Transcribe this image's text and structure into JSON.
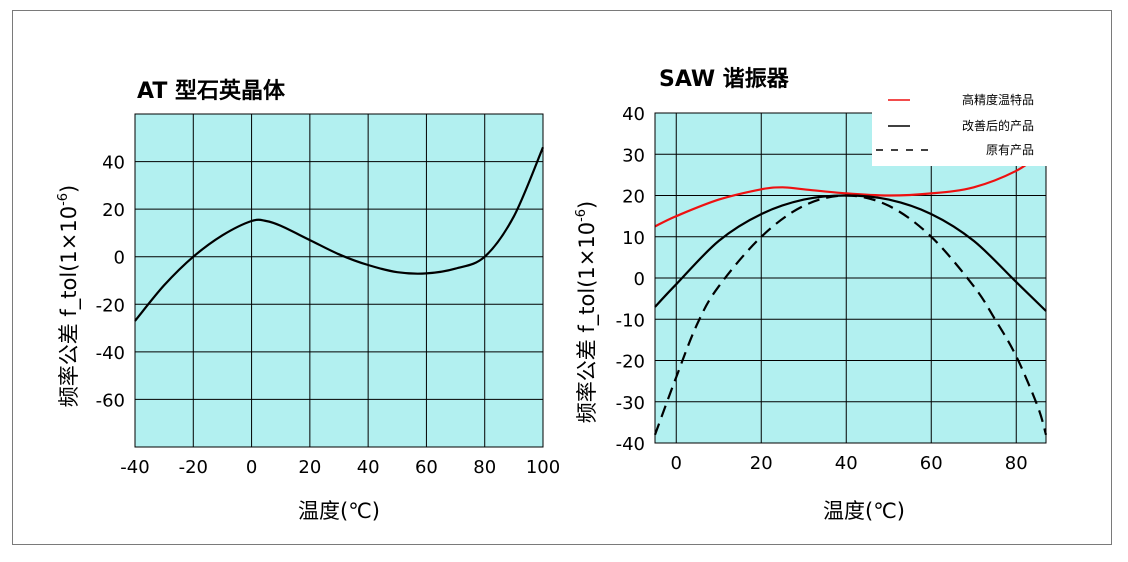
{
  "chart_data": [
    {
      "type": "line",
      "title": "AT 型石英晶体",
      "xlabel": "温度(℃)",
      "ylabel": "频率公差 f_tol(1×10",
      "ylabel_sup": "-6",
      "ylabel_close": ")",
      "xlim": [
        -40,
        100
      ],
      "ylim": [
        -80,
        60
      ],
      "xticks": [
        -40,
        -20,
        0,
        20,
        40,
        60,
        80,
        100
      ],
      "yticks": [
        -60,
        -40,
        -20,
        0,
        20,
        40
      ],
      "ytick_labels": [
        "-60",
        "-40",
        "-20",
        "0",
        "20",
        "40"
      ],
      "grid": true,
      "background": "#b2f0f0",
      "series": [
        {
          "name": "",
          "color": "#000000",
          "dash": "solid",
          "x": [
            -40,
            -30,
            -20,
            -10,
            0,
            5,
            10,
            20,
            30,
            40,
            50,
            60,
            70,
            80,
            90,
            100
          ],
          "y": [
            -27,
            -12,
            0,
            9,
            15,
            15,
            13,
            7,
            1,
            -3.5,
            -6.5,
            -7,
            -5,
            0,
            17,
            46
          ]
        }
      ]
    },
    {
      "type": "line",
      "title": "SAW 谐振器",
      "xlabel": "温度(℃)",
      "ylabel": "频率公差 f_tol(1×10",
      "ylabel_sup": "-6",
      "ylabel_close": ")",
      "xlim": [
        -5,
        87
      ],
      "ylim": [
        -40,
        40
      ],
      "xticks": [
        0,
        20,
        40,
        60,
        80
      ],
      "yticks": [
        -40,
        -30,
        -20,
        -10,
        0,
        10,
        20,
        30,
        40
      ],
      "ytick_labels": [
        "-40",
        "-30",
        "-20",
        "-10",
        "0",
        "10",
        "20",
        "30",
        "40"
      ],
      "grid": true,
      "background": "#b2f0f0",
      "legend_placement": "top-right",
      "series": [
        {
          "name": "高精度温特品",
          "color": "#ee1111",
          "dash": "solid",
          "x": [
            -5,
            0,
            10,
            20,
            25,
            30,
            40,
            50,
            60,
            70,
            80,
            87
          ],
          "y": [
            12.5,
            15,
            19,
            21.5,
            22,
            21.5,
            20.5,
            20,
            20.5,
            22,
            26,
            31
          ]
        },
        {
          "name": "改善后的产品",
          "color": "#000000",
          "dash": "solid",
          "x": [
            -5,
            0,
            10,
            20,
            30,
            40,
            50,
            60,
            70,
            80,
            87
          ],
          "y": [
            -7,
            -1.5,
            9,
            15.5,
            19,
            20,
            19,
            15.5,
            9,
            -1,
            -8
          ]
        },
        {
          "name": "原有产品",
          "color": "#000000",
          "dash": "dashed",
          "x": [
            -5,
            0,
            5,
            10,
            20,
            30,
            40,
            50,
            60,
            70,
            75,
            80,
            85,
            87
          ],
          "y": [
            -38,
            -24,
            -11,
            -2,
            10,
            17.5,
            20,
            17.5,
            10,
            -2,
            -10,
            -19,
            -31,
            -38
          ]
        }
      ]
    }
  ]
}
